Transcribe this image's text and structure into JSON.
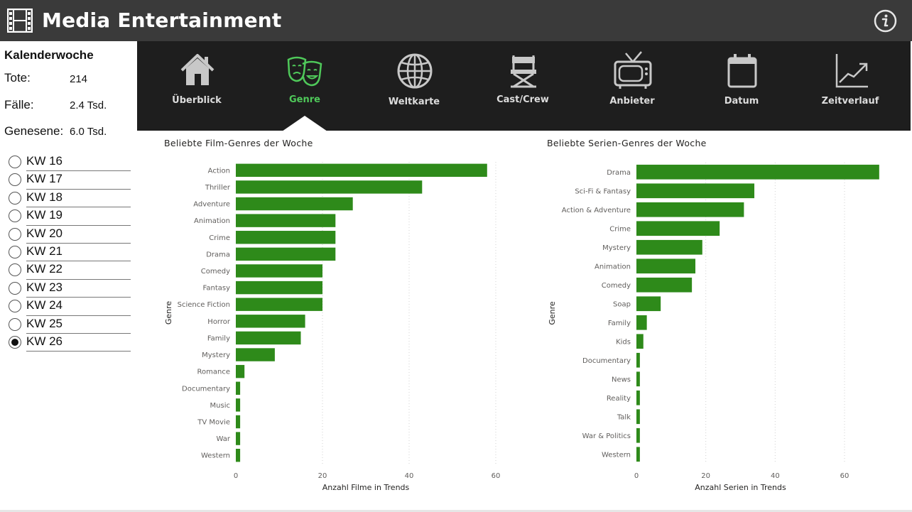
{
  "header": {
    "title": "Media Entertainment",
    "logo_icon": "film-strip-icon",
    "info_icon": "info-icon",
    "background": "#3a3a3a"
  },
  "sidebar": {
    "title": "Kalenderwoche",
    "stats": [
      {
        "label": "Tote:",
        "value": "214"
      },
      {
        "label": "Fälle:",
        "value": "2.4 Tsd."
      },
      {
        "label": "Genesene:",
        "value": "6.0 Tsd."
      }
    ],
    "weeks": [
      "KW 16",
      "KW 17",
      "KW 18",
      "KW 19",
      "KW 20",
      "KW 21",
      "KW 22",
      "KW 23",
      "KW 24",
      "KW 25",
      "KW 26"
    ],
    "selected_week": "KW 26"
  },
  "nav": {
    "items": [
      {
        "label": "Überblick",
        "icon": "home-icon",
        "active": false
      },
      {
        "label": "Genre",
        "icon": "theater-masks-icon",
        "active": true
      },
      {
        "label": "Weltkarte",
        "icon": "globe-icon",
        "active": false
      },
      {
        "label": "Cast/Crew",
        "icon": "director-chair-icon",
        "active": false
      },
      {
        "label": "Anbieter",
        "icon": "tv-icon",
        "active": false
      },
      {
        "label": "Datum",
        "icon": "calendar-icon",
        "active": false
      },
      {
        "label": "Zeitverlauf",
        "icon": "trend-chart-icon",
        "active": false
      }
    ],
    "active_color": "#4fc95a",
    "background": "#1e1e1e"
  },
  "chart_data": [
    {
      "type": "bar",
      "orientation": "horizontal",
      "title": "Beliebte Film-Genres der Woche",
      "xlabel": "Anzahl Filme in Trends",
      "ylabel": "Genre",
      "categories": [
        "Action",
        "Thriller",
        "Adventure",
        "Animation",
        "Crime",
        "Drama",
        "Comedy",
        "Fantasy",
        "Science Fiction",
        "Horror",
        "Family",
        "Mystery",
        "Romance",
        "Documentary",
        "Music",
        "TV Movie",
        "War",
        "Western"
      ],
      "values": [
        58,
        43,
        27,
        23,
        23,
        23,
        20,
        20,
        20,
        16,
        15,
        9,
        2,
        1,
        1,
        1,
        1,
        1
      ],
      "xlim": [
        0,
        60
      ],
      "xticks": [
        0,
        20,
        40,
        60
      ],
      "color": "#2e8a1a",
      "grid": true
    },
    {
      "type": "bar",
      "orientation": "horizontal",
      "title": "Beliebte Serien-Genres der Woche",
      "xlabel": "Anzahl Serien in Trends",
      "ylabel": "Genre",
      "categories": [
        "Drama",
        "Sci-Fi & Fantasy",
        "Action & Adventure",
        "Crime",
        "Mystery",
        "Animation",
        "Comedy",
        "Soap",
        "Family",
        "Kids",
        "Documentary",
        "News",
        "Reality",
        "Talk",
        "War & Politics",
        "Western"
      ],
      "values": [
        70,
        34,
        31,
        24,
        19,
        17,
        16,
        7,
        3,
        2,
        1,
        1,
        1,
        1,
        1,
        1
      ],
      "xlim": [
        0,
        60
      ],
      "xticks": [
        0,
        20,
        40,
        60
      ],
      "color": "#2e8a1a",
      "grid": true
    }
  ]
}
